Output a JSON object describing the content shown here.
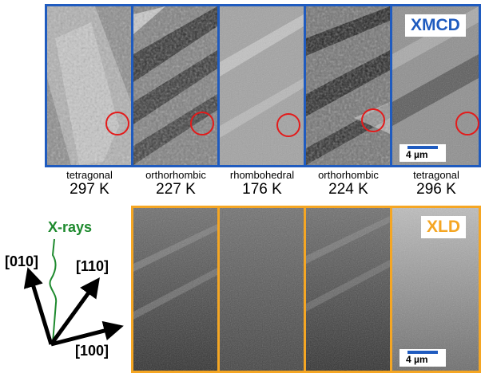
{
  "xmcd_label": "XMCD",
  "xld_label": "XLD",
  "scale_bar_label": "4 µm",
  "columns": [
    {
      "phase": "tetragonal",
      "temperature": "297 K"
    },
    {
      "phase": "orthorhombic",
      "temperature": "227 K"
    },
    {
      "phase": "rhombohedral",
      "temperature": "176 K"
    },
    {
      "phase": "orthorhombic",
      "temperature": "224 K"
    },
    {
      "phase": "tetragonal",
      "temperature": "296 K"
    }
  ],
  "axes": {
    "beam": "X-rays",
    "dir_010": "[010]",
    "dir_110": "[110]",
    "dir_100": "[100]"
  },
  "colors": {
    "xmcd_frame": "#1f5bbf",
    "xld_frame": "#f5a623",
    "highlight_circle": "#e31b1b",
    "xrays": "#1e8a2e"
  }
}
